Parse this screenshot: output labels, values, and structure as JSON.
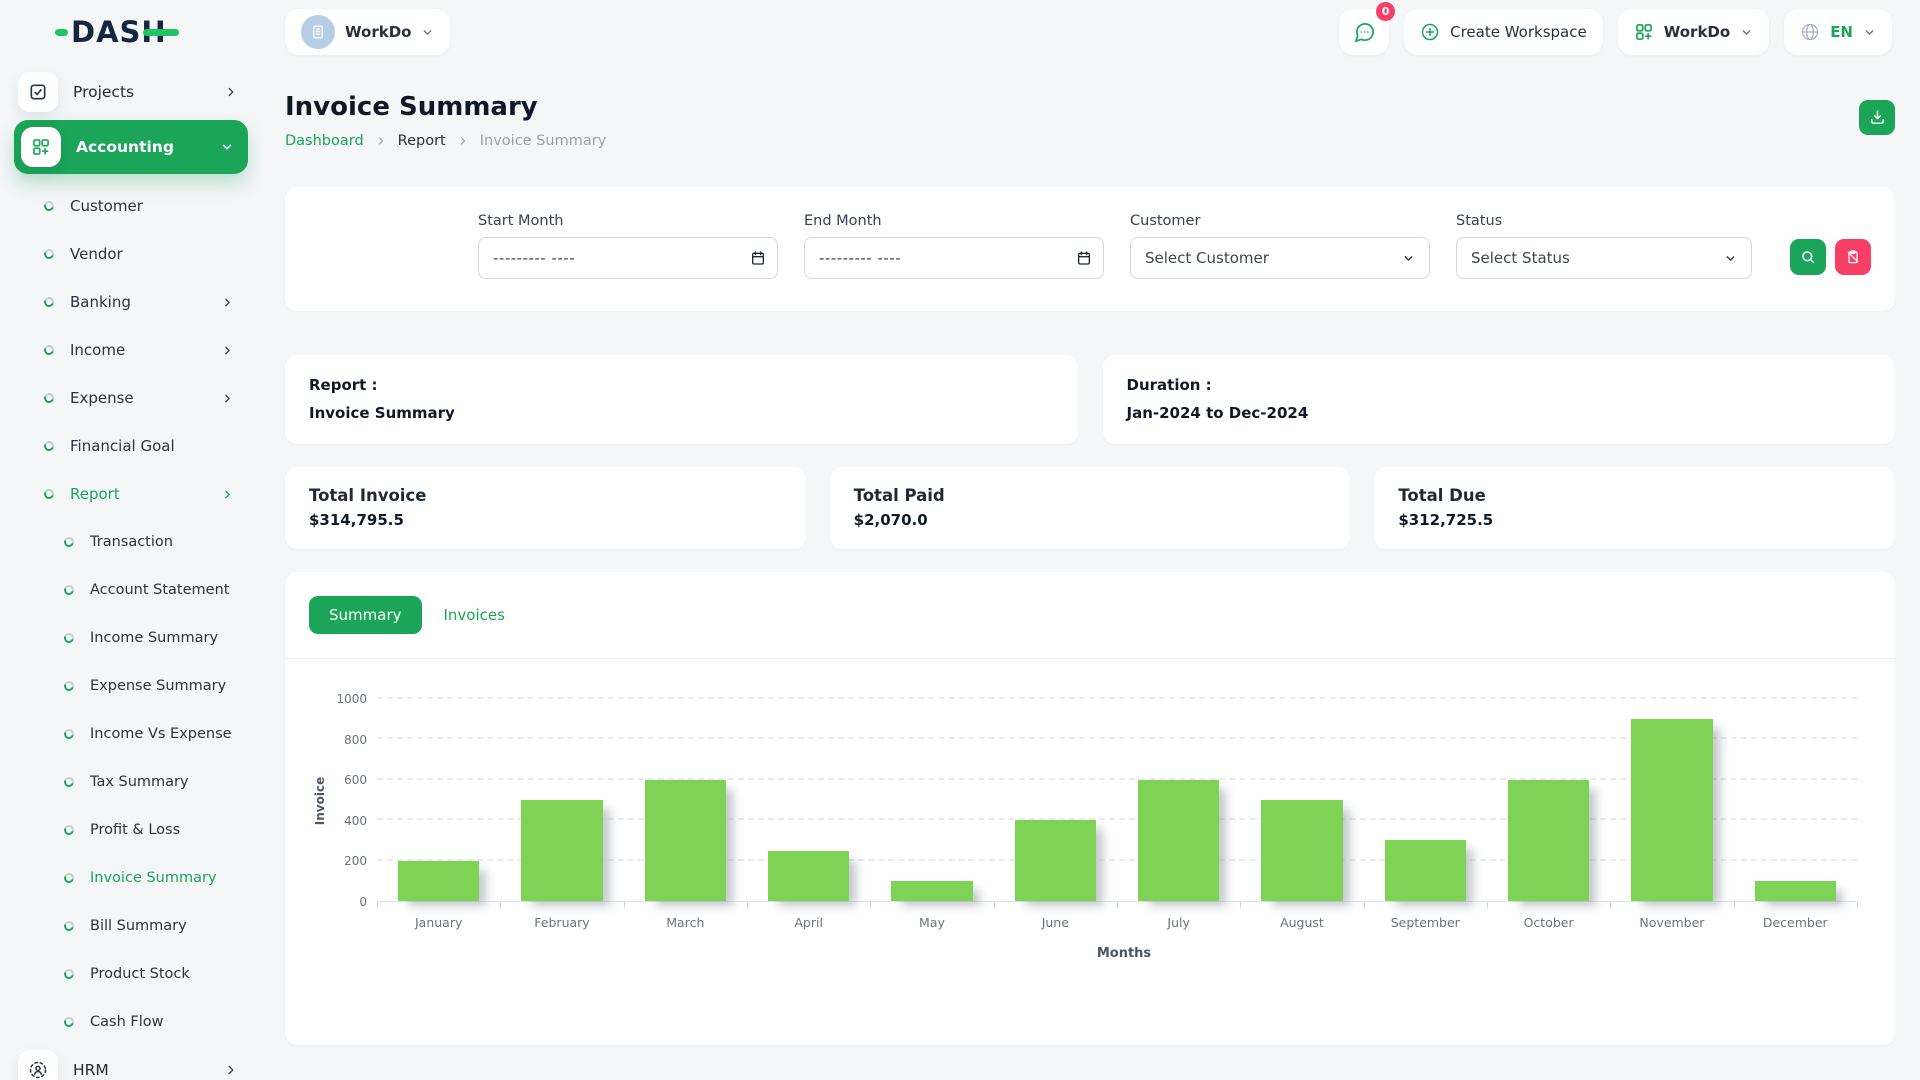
{
  "brand": {
    "name": "DASH"
  },
  "header": {
    "workspace": {
      "label": "WorkDo"
    },
    "messages": {
      "badge": "0"
    },
    "create_workspace": {
      "label": "Create Workspace"
    },
    "app_menu": {
      "label": "WorkDo"
    },
    "language": {
      "label": "EN"
    }
  },
  "sidebar": {
    "projects": {
      "label": "Projects"
    },
    "accounting": {
      "label": "Accounting"
    },
    "accounting_menu": [
      {
        "label": "Customer"
      },
      {
        "label": "Vendor"
      },
      {
        "label": "Banking"
      },
      {
        "label": "Income"
      },
      {
        "label": "Expense"
      },
      {
        "label": "Financial Goal"
      },
      {
        "label": "Report"
      }
    ],
    "report_menu": [
      {
        "label": "Transaction"
      },
      {
        "label": "Account Statement"
      },
      {
        "label": "Income Summary"
      },
      {
        "label": "Expense Summary"
      },
      {
        "label": "Income Vs Expense"
      },
      {
        "label": "Tax Summary"
      },
      {
        "label": "Profit & Loss"
      },
      {
        "label": "Invoice Summary"
      },
      {
        "label": "Bill Summary"
      },
      {
        "label": "Product Stock"
      },
      {
        "label": "Cash Flow"
      }
    ],
    "hrm": {
      "label": "HRM"
    }
  },
  "page": {
    "title": "Invoice Summary",
    "breadcrumb": [
      "Dashboard",
      "Report",
      "Invoice Summary"
    ]
  },
  "filters": {
    "start_month": {
      "label": "Start Month",
      "value": "",
      "placeholder": "--------- ----"
    },
    "end_month": {
      "label": "End Month",
      "value": "",
      "placeholder": "--------- ----"
    },
    "customer": {
      "label": "Customer",
      "value": "Select Customer"
    },
    "status": {
      "label": "Status",
      "value": "Select Status"
    }
  },
  "report_info": {
    "report_label": "Report :",
    "report_value": "Invoice Summary",
    "duration_label": "Duration :",
    "duration_value": "Jan-2024 to Dec-2024"
  },
  "totals": [
    {
      "label": "Total Invoice",
      "value": "$314,795.5"
    },
    {
      "label": "Total Paid",
      "value": "$2,070.0"
    },
    {
      "label": "Total Due",
      "value": "$312,725.5"
    }
  ],
  "tabs": {
    "summary": "Summary",
    "invoices": "Invoices"
  },
  "chart_data": {
    "type": "bar",
    "title": "",
    "categories": [
      "January",
      "February",
      "March",
      "April",
      "May",
      "June",
      "July",
      "August",
      "September",
      "October",
      "November",
      "December"
    ],
    "values": [
      200,
      500,
      600,
      250,
      100,
      400,
      600,
      500,
      300,
      600,
      900,
      100
    ],
    "xlabel": "Months",
    "ylabel": "Invoice",
    "ylim": [
      0,
      1000
    ],
    "yticks": [
      0,
      200,
      400,
      600,
      800,
      1000
    ],
    "grid": true,
    "legend": "none",
    "bar_color": "#7ed357"
  },
  "colors": {
    "primary_green": "#1aa558",
    "bar_green": "#7ed357",
    "pink": "#f73e65",
    "logo_green": "#1fc464",
    "avatar_blue": "#b6cde7",
    "background": "#f4f6f8"
  }
}
